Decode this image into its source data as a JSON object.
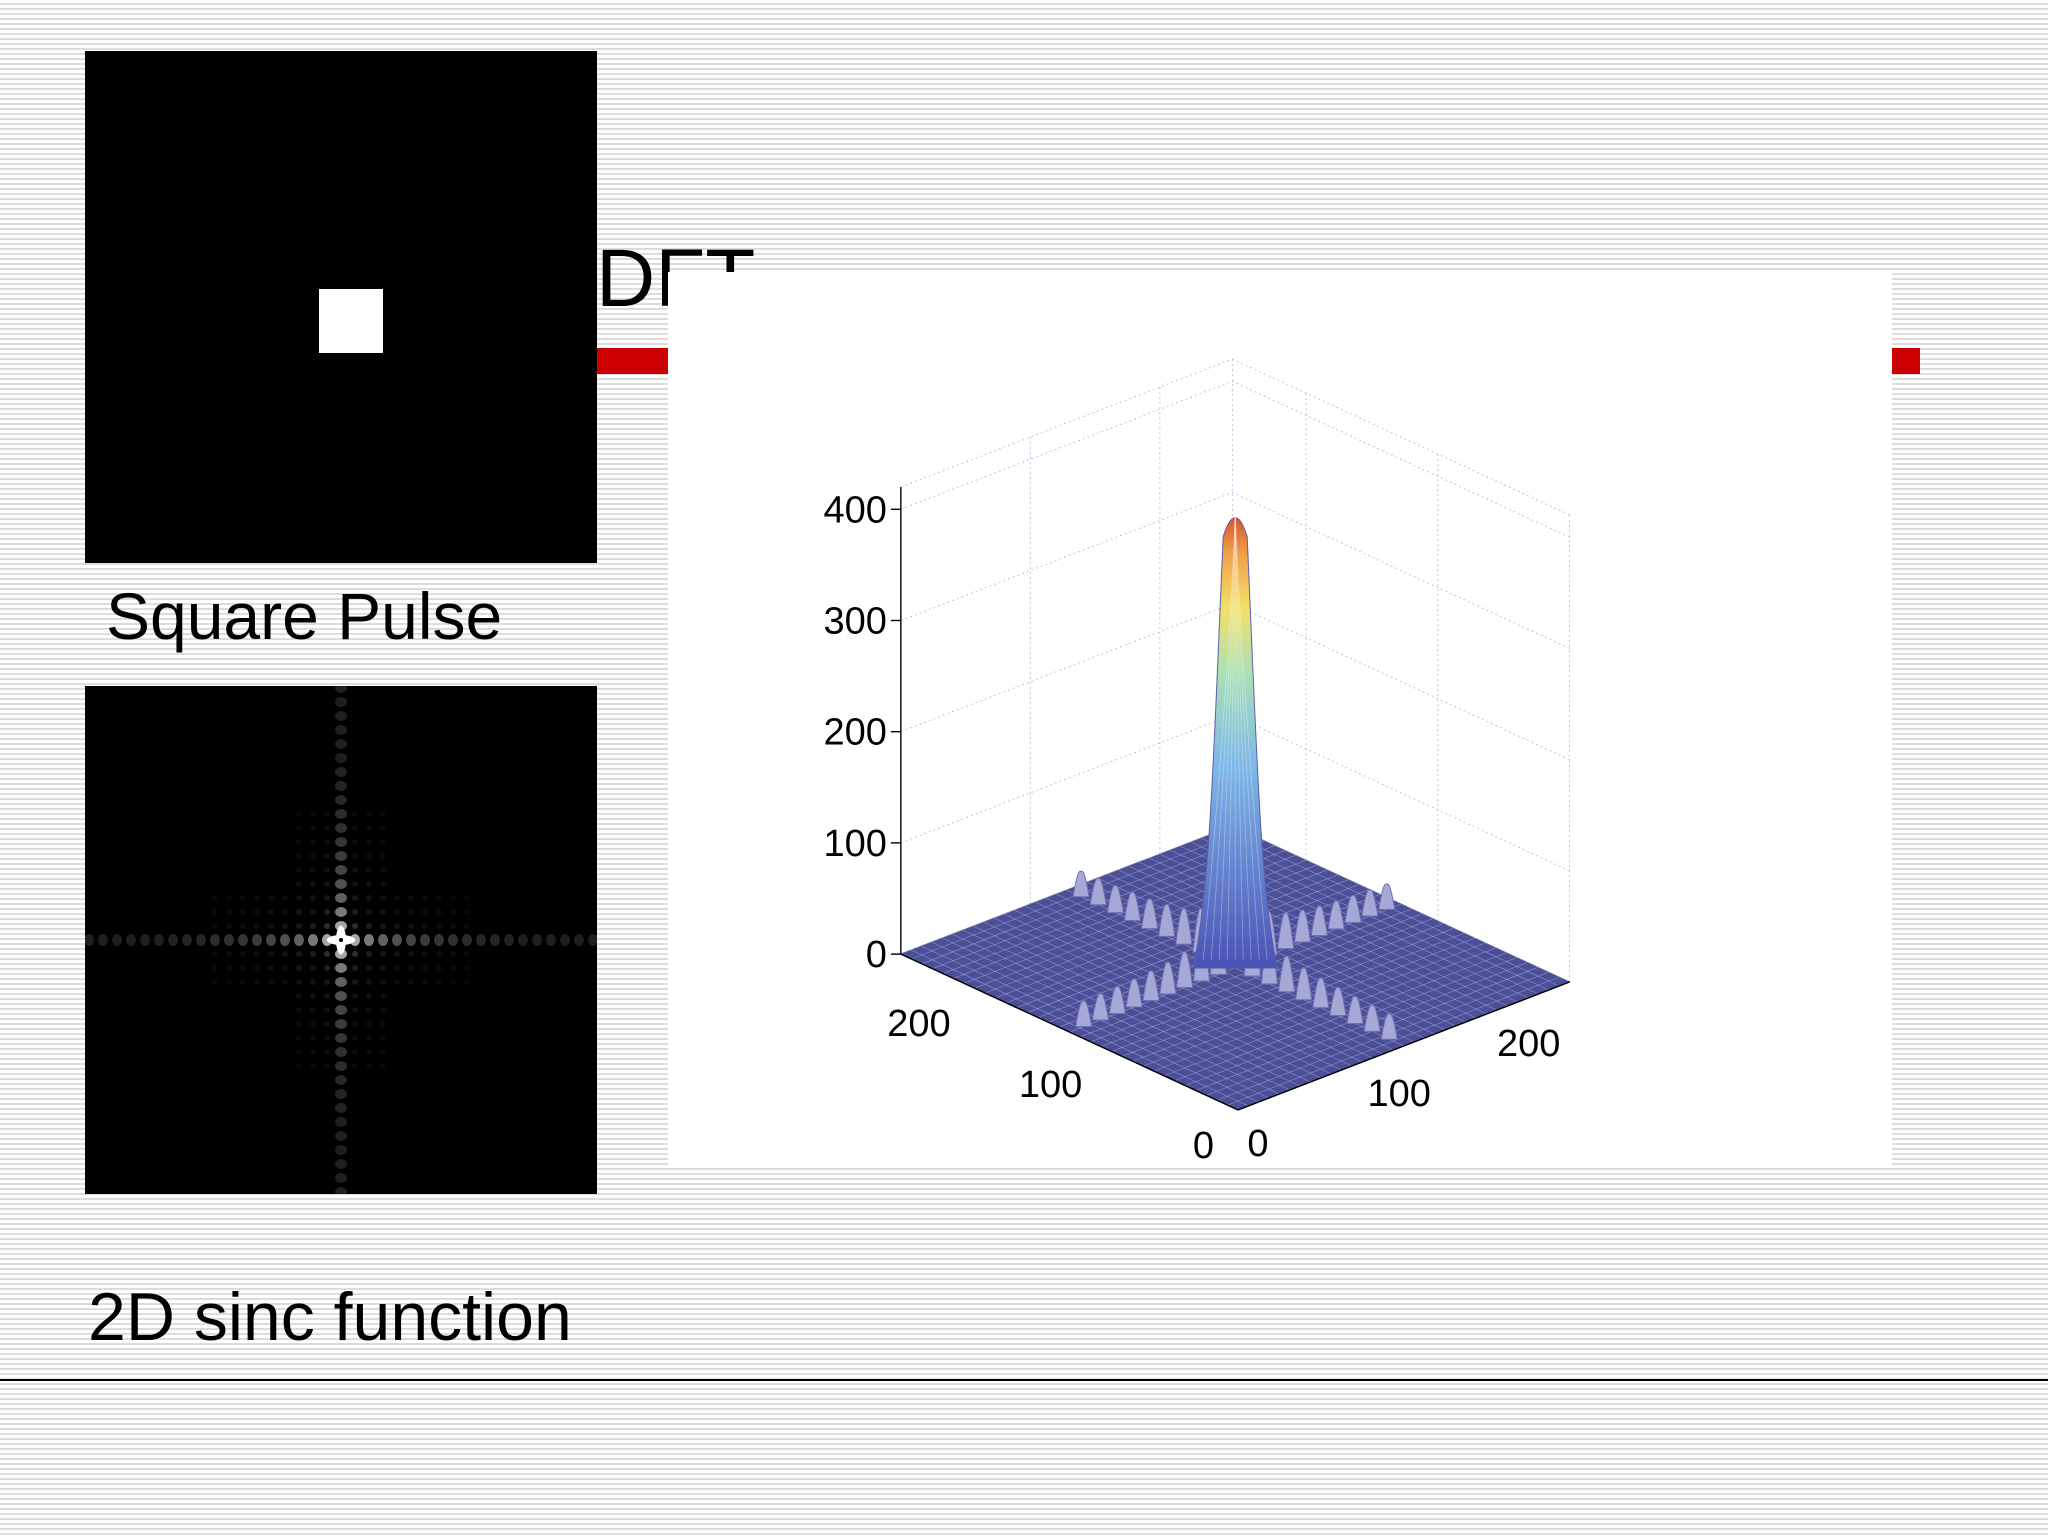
{
  "slide": {
    "title": "DFT",
    "accent_color": "#cc0000"
  },
  "panels": {
    "pulse_caption": "Square Pulse",
    "sinc_caption": "2D sinc function"
  },
  "chart_data": {
    "type": "surface3d",
    "title": "",
    "z": {
      "ticks": [
        0,
        100,
        200,
        300,
        400
      ],
      "range": [
        0,
        420
      ],
      "peak": 415
    },
    "x": {
      "ticks": [
        0,
        100,
        200
      ],
      "range": [
        0,
        256
      ]
    },
    "y": {
      "ticks": [
        0,
        100,
        200
      ],
      "range": [
        0,
        256
      ]
    },
    "grid": true,
    "colormap": "jet",
    "base_color": "#4a4f98",
    "mesh_color": "#c9cbea"
  }
}
